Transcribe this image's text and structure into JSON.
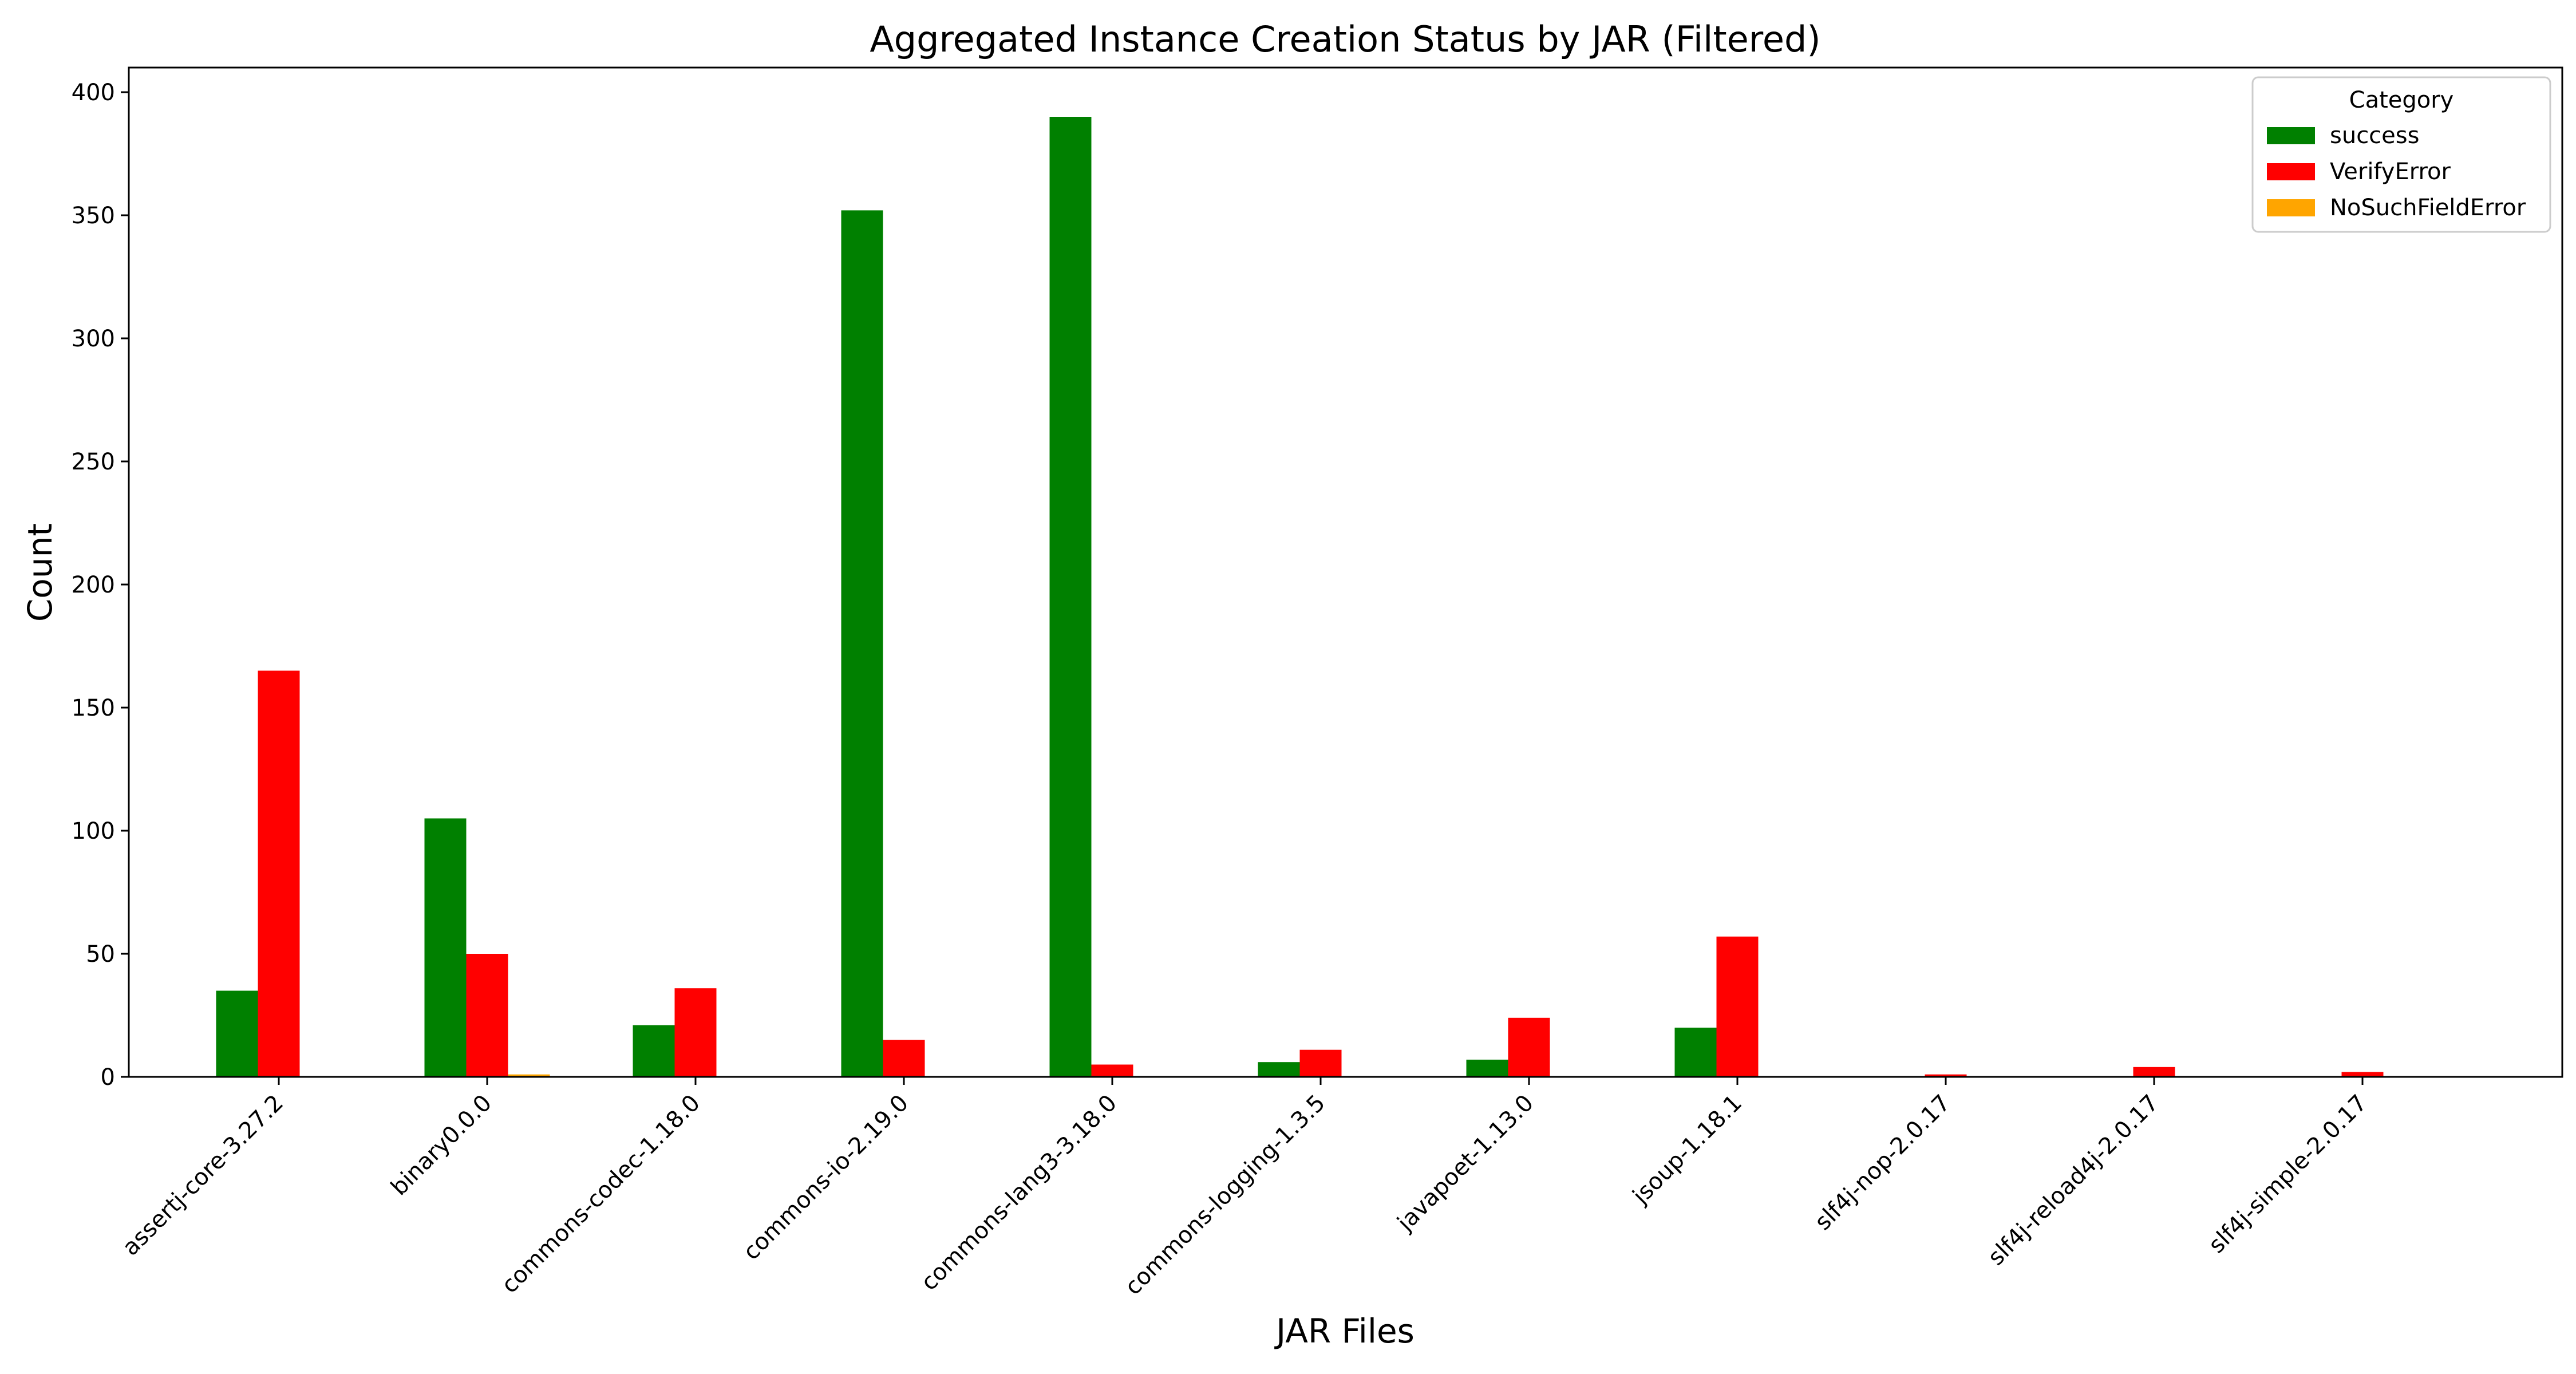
{
  "chart_data": {
    "type": "bar",
    "title": "Aggregated Instance Creation Status by JAR (Filtered)",
    "xlabel": "JAR Files",
    "ylabel": "Count",
    "ylim": [
      0,
      410
    ],
    "yticks": [
      0,
      50,
      100,
      150,
      200,
      250,
      300,
      350,
      400
    ],
    "categories": [
      "assertj-core-3.27.2",
      "binary0.0.0",
      "commons-codec-1.18.0",
      "commons-io-2.19.0",
      "commons-lang3-3.18.0",
      "commons-logging-1.3.5",
      "javapoet-1.13.0",
      "jsoup-1.18.1",
      "slf4j-nop-2.0.17",
      "slf4j-reload4j-2.0.17",
      "slf4j-simple-2.0.17"
    ],
    "series": [
      {
        "name": "success",
        "color": "#008000",
        "values": [
          35,
          105,
          21,
          352,
          390,
          6,
          7,
          20,
          0,
          0,
          0
        ]
      },
      {
        "name": "VerifyError",
        "color": "#ff0000",
        "values": [
          165,
          50,
          36,
          15,
          5,
          11,
          24,
          57,
          1,
          4,
          2
        ]
      },
      {
        "name": "NoSuchFieldError",
        "color": "#ffa500",
        "values": [
          0,
          1,
          0,
          0,
          0,
          0,
          0,
          0,
          0,
          0,
          0
        ]
      }
    ],
    "legend": {
      "title": "Category",
      "placement": "top-right"
    },
    "grid": false
  }
}
